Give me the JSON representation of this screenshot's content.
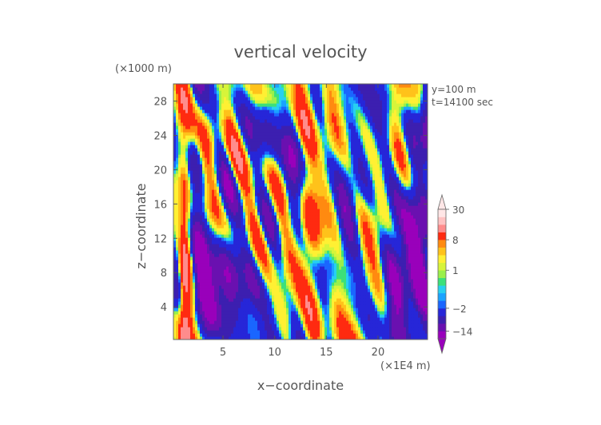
{
  "chart_data": {
    "type": "heatmap",
    "title": "vertical velocity",
    "xlabel": "x−coordinate",
    "ylabel": "z−coordinate",
    "x_unit": "(×1E4 m)",
    "y_unit": "(×1000 m)",
    "info_lines": [
      "y=100 m",
      "t=14100 sec"
    ],
    "xlim": [
      0.2,
      24.8
    ],
    "ylim": [
      0.2,
      30
    ],
    "x_ticks": [
      5,
      10,
      15,
      20
    ],
    "y_ticks": [
      4,
      8,
      12,
      16,
      20,
      24,
      28
    ],
    "x_tick_labels": [
      "5",
      "10",
      "15",
      "20"
    ],
    "y_tick_labels": [
      "4",
      "8",
      "12",
      "16",
      "20",
      "24",
      "28"
    ],
    "grid": false,
    "colorbar": {
      "placement": "right",
      "levels": [
        -30,
        -14,
        -10,
        -6,
        -2,
        -1,
        -0.5,
        0,
        0.5,
        1,
        2,
        4,
        6,
        8,
        14,
        20,
        30
      ],
      "colors": [
        "#9900bb",
        "#6a10b0",
        "#3c1fb0",
        "#2626d8",
        "#1a66ff",
        "#1aa3ff",
        "#27d0f0",
        "#3ce07a",
        "#9af04a",
        "#d7f43a",
        "#fff033",
        "#ffc21a",
        "#ff8a10",
        "#ff2a10",
        "#ff8c8c",
        "#ffc2c2",
        "#ffe6e6"
      ],
      "labeled_values": [
        30,
        8,
        1,
        -2,
        -14
      ],
      "tick_labels": [
        "30",
        "8",
        "1",
        "−2",
        "−14"
      ]
    },
    "features": [
      {
        "x": 1.2,
        "z": 6.5,
        "w": 0.9,
        "h": 16,
        "v": 20
      },
      {
        "x": 0.7,
        "z": 9.0,
        "w": 0.4,
        "h": 9,
        "v": -8
      },
      {
        "x": 4.0,
        "z": 8.5,
        "w": 4.0,
        "h": 9,
        "v": -10
      },
      {
        "x": 4.5,
        "z": 5.5,
        "w": 2.5,
        "h": 5,
        "v": -6
      },
      {
        "x": 23.5,
        "z": 9.5,
        "w": 1.6,
        "h": 10,
        "v": -16
      },
      {
        "x": 22.0,
        "z": 10.0,
        "w": 1.2,
        "h": 10,
        "v": -8
      },
      {
        "x": 24.7,
        "z": 17.0,
        "w": 0.6,
        "h": 12,
        "v": -6
      },
      {
        "x": 24.6,
        "z": 27.0,
        "w": 0.7,
        "h": 5,
        "v": -8
      },
      {
        "x": 13.0,
        "z": 12.5,
        "w": 1.8,
        "h": 4,
        "v": 9
      },
      {
        "x": 20.2,
        "z": 25.0,
        "w": 1.3,
        "h": 9,
        "v": -6
      },
      {
        "x": 22.0,
        "z": 27.0,
        "w": 1.8,
        "h": 5,
        "v": 6
      },
      {
        "x": 6.0,
        "z": 27.0,
        "w": 2.5,
        "h": 5,
        "v": 6
      },
      {
        "x": 2.2,
        "z": 22.0,
        "w": 0.9,
        "h": 8,
        "v": -8
      },
      {
        "x": 17.5,
        "z": 19.0,
        "w": 1.5,
        "h": 7,
        "v": -6
      },
      {
        "x": 12.0,
        "z": 19.0,
        "w": 1.2,
        "h": 8,
        "v": -7
      },
      {
        "x": 8.0,
        "z": 16.0,
        "w": 2.0,
        "h": 6,
        "v": 6
      },
      {
        "x": 15.0,
        "z": 22.0,
        "w": 2.5,
        "h": 8,
        "v": 5
      },
      {
        "x": 10.0,
        "z": 3.0,
        "w": 3.0,
        "h": 3,
        "v": 4
      },
      {
        "x": 18.5,
        "z": 7.5,
        "w": 1.8,
        "h": 7,
        "v": 5
      },
      {
        "x": 2.5,
        "z": 1.6,
        "w": 2.5,
        "h": 1.6,
        "v": -0.5
      },
      {
        "x": 16.0,
        "z": 10.0,
        "w": 1.4,
        "h": 6,
        "v": -4
      },
      {
        "x": 9.5,
        "z": 25.0,
        "w": 1.5,
        "h": 6,
        "v": -5
      },
      {
        "x": 19.5,
        "z": 14.0,
        "w": 1.5,
        "h": 5,
        "v": 6
      }
    ]
  }
}
